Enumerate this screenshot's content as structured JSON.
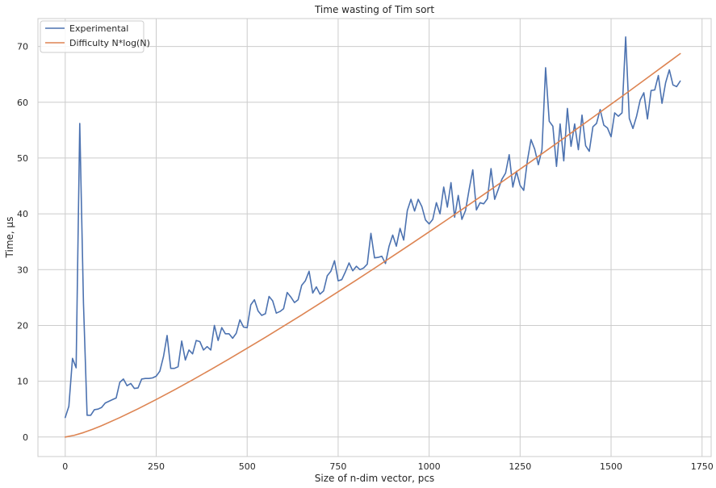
{
  "chart_data": {
    "type": "line",
    "title": "Time wasting of Tim sort",
    "xlabel": "Size of n-dim vector, pcs",
    "ylabel": "Time, μs",
    "xlim": [
      -75,
      1775
    ],
    "ylim": [
      -3.5,
      75
    ],
    "xticks": [
      0,
      250,
      500,
      750,
      1000,
      1250,
      1500,
      1750
    ],
    "yticks": [
      0,
      10,
      20,
      30,
      40,
      50,
      60,
      70
    ],
    "grid": true,
    "legend_position": "top-left",
    "series": [
      {
        "name": "Experimental",
        "color": "#4c72b0",
        "x": [
          0,
          10,
          20,
          30,
          40,
          50,
          60,
          70,
          80,
          90,
          100,
          110,
          120,
          130,
          140,
          150,
          160,
          170,
          180,
          190,
          200,
          210,
          220,
          230,
          240,
          250,
          260,
          270,
          280,
          290,
          300,
          310,
          320,
          330,
          340,
          350,
          360,
          370,
          380,
          390,
          400,
          410,
          420,
          430,
          440,
          450,
          460,
          470,
          480,
          490,
          500,
          510,
          520,
          530,
          540,
          550,
          560,
          570,
          580,
          590,
          600,
          610,
          620,
          630,
          640,
          650,
          660,
          670,
          680,
          690,
          700,
          710,
          720,
          730,
          740,
          750,
          760,
          770,
          780,
          790,
          800,
          810,
          820,
          830,
          840,
          850,
          860,
          870,
          880,
          890,
          900,
          910,
          920,
          930,
          940,
          950,
          960,
          970,
          980,
          990,
          1000,
          1010,
          1020,
          1030,
          1040,
          1050,
          1060,
          1070,
          1080,
          1090,
          1100,
          1110,
          1120,
          1130,
          1140,
          1150,
          1160,
          1170,
          1180,
          1190,
          1200,
          1210,
          1220,
          1230,
          1240,
          1250,
          1260,
          1270,
          1280,
          1290,
          1300,
          1310,
          1320,
          1330,
          1340,
          1350,
          1360,
          1370,
          1380,
          1390,
          1400,
          1410,
          1420,
          1430,
          1440,
          1450,
          1460,
          1470,
          1480,
          1490,
          1500,
          1510,
          1520,
          1530,
          1540,
          1550,
          1560,
          1570,
          1580,
          1590,
          1600,
          1610,
          1620,
          1630,
          1640,
          1650,
          1660,
          1670,
          1680,
          1690
        ],
        "y": [
          3.5,
          5.5,
          14.1,
          12.4,
          56.2,
          24.0,
          3.9,
          3.9,
          4.9,
          5.0,
          5.3,
          6.1,
          6.4,
          6.7,
          7.0,
          9.8,
          10.4,
          9.2,
          9.6,
          8.7,
          8.8,
          10.4,
          10.5,
          10.5,
          10.6,
          10.9,
          11.8,
          14.4,
          18.2,
          12.3,
          12.3,
          12.6,
          17.2,
          13.8,
          15.6,
          14.9,
          17.3,
          17.1,
          15.6,
          16.2,
          15.6,
          20.0,
          17.3,
          19.6,
          18.5,
          18.5,
          17.7,
          18.6,
          21.0,
          19.7,
          19.6,
          23.7,
          24.6,
          22.6,
          21.8,
          22.1,
          25.2,
          24.4,
          22.2,
          22.5,
          23.0,
          25.9,
          25.1,
          24.1,
          24.6,
          27.2,
          28.0,
          29.7,
          25.8,
          26.9,
          25.6,
          26.2,
          28.9,
          29.7,
          31.6,
          28.0,
          28.2,
          29.6,
          31.2,
          29.8,
          30.6,
          30.0,
          30.3,
          31.0,
          36.5,
          32.1,
          32.2,
          32.4,
          31.1,
          34.2,
          36.2,
          34.2,
          37.4,
          35.3,
          40.6,
          42.6,
          40.5,
          42.6,
          41.3,
          38.9,
          38.2,
          39.0,
          42.0,
          40.0,
          44.8,
          41.2,
          45.6,
          39.4,
          43.3,
          39.0,
          40.6,
          44.4,
          47.9,
          40.7,
          42.0,
          41.8,
          42.7,
          48.1,
          42.6,
          44.4,
          46.2,
          47.3,
          50.6,
          44.8,
          47.6,
          45.1,
          44.2,
          49.5,
          53.3,
          51.6,
          48.8,
          51.5,
          66.2,
          56.6,
          55.7,
          48.5,
          56.1,
          49.5,
          58.9,
          52.1,
          56.1,
          51.5,
          57.7,
          52.2,
          51.2,
          55.6,
          56.2,
          58.7,
          55.9,
          55.4,
          53.8,
          58.1,
          57.5,
          58.1,
          71.7,
          57.1,
          55.3,
          57.5,
          60.4,
          61.7,
          57.0,
          62.1,
          62.2,
          64.8,
          59.8,
          63.5,
          65.8,
          63.1,
          62.8,
          63.8
        ]
      },
      {
        "name": "Difficulty N*log(N)",
        "color": "#dd8452",
        "x": [
          0,
          25,
          50,
          75,
          100,
          150,
          200,
          250,
          300,
          350,
          400,
          450,
          500,
          550,
          600,
          650,
          700,
          750,
          800,
          850,
          900,
          950,
          1000,
          1050,
          1100,
          1150,
          1200,
          1250,
          1300,
          1350,
          1400,
          1450,
          1500,
          1550,
          1600,
          1650,
          1690
        ],
        "y": [
          0.0,
          0.32,
          0.79,
          1.39,
          2.04,
          3.48,
          5.06,
          6.72,
          8.45,
          10.25,
          12.09,
          13.98,
          15.91,
          17.87,
          19.87,
          21.89,
          23.95,
          26.03,
          28.13,
          30.26,
          32.41,
          34.58,
          36.78,
          38.99,
          41.22,
          43.46,
          45.73,
          48.01,
          50.31,
          52.62,
          54.95,
          57.29,
          59.64,
          62.01,
          64.39,
          66.79,
          68.71
        ]
      }
    ]
  }
}
